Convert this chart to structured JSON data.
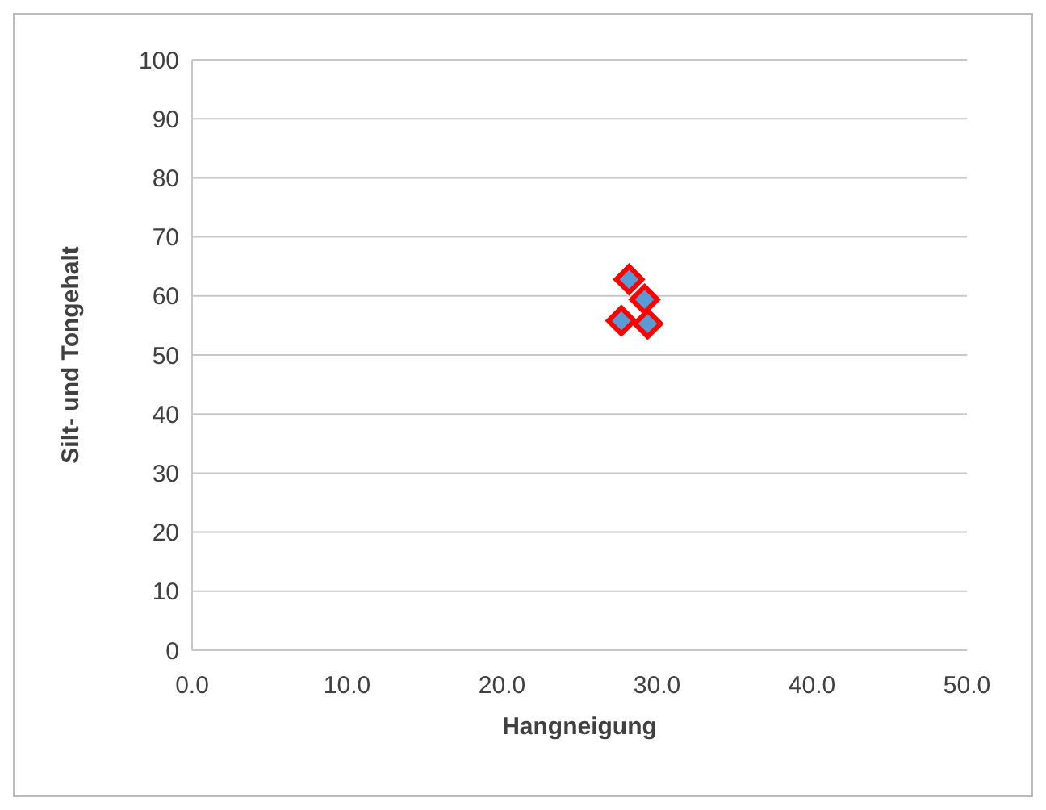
{
  "chart_data": {
    "type": "scatter",
    "xlabel": "Hangneigung",
    "ylabel": "Silt- und Tongehalt",
    "x": [
      28.2,
      29.2,
      27.7,
      29.4
    ],
    "series": [
      {
        "color": "#5b9bd5",
        "values": [
          62.8,
          59.4,
          55.8,
          55.3
        ]
      }
    ],
    "xlim": [
      0,
      50
    ],
    "xticks": [
      {
        "value": 0,
        "label": "0.0"
      },
      {
        "value": 10,
        "label": "10.0"
      },
      {
        "value": 20,
        "label": "20.0"
      },
      {
        "value": 30,
        "label": "30.0"
      },
      {
        "value": 40,
        "label": "40.0"
      },
      {
        "value": 50,
        "label": "50.0"
      }
    ],
    "ylim": [
      0,
      100
    ],
    "yticks": [
      0,
      10,
      20,
      30,
      40,
      50,
      60,
      70,
      80,
      90,
      100
    ],
    "grid": "y",
    "marker": "diamond",
    "legend": false
  }
}
